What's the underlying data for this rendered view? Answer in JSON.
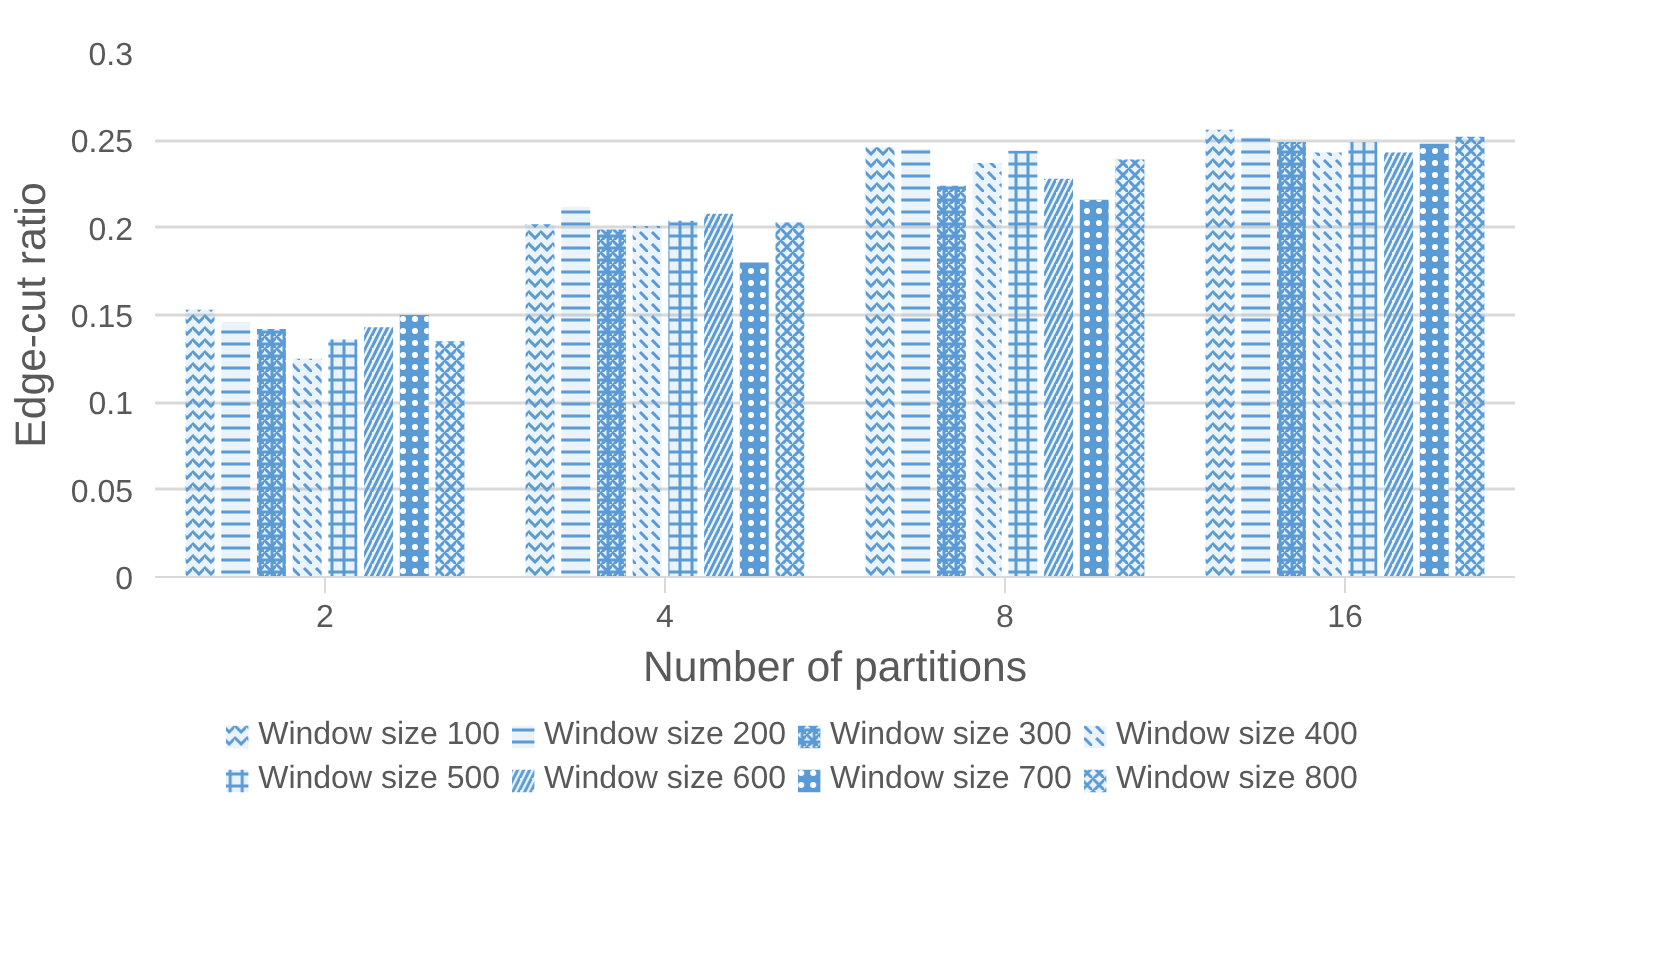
{
  "chart_data": {
    "type": "bar",
    "xlabel": "Number of partitions",
    "ylabel": "Edge-cut ratio",
    "categories": [
      "2",
      "4",
      "8",
      "16"
    ],
    "series": [
      {
        "name": "Window size 100",
        "color": "#5b9bd5",
        "values": [
          0.153,
          0.202,
          0.246,
          0.256
        ]
      },
      {
        "name": "Window size 200",
        "color": "#5b9bd5",
        "values": [
          0.146,
          0.212,
          0.245,
          0.252
        ]
      },
      {
        "name": "Window size 300",
        "color": "#5b9bd5",
        "values": [
          0.142,
          0.199,
          0.224,
          0.249
        ]
      },
      {
        "name": "Window size 400",
        "color": "#5b9bd5",
        "values": [
          0.125,
          0.201,
          0.237,
          0.243
        ]
      },
      {
        "name": "Window size 500",
        "color": "#5b9bd5",
        "values": [
          0.136,
          0.204,
          0.244,
          0.249
        ]
      },
      {
        "name": "Window size 600",
        "color": "#5b9bd5",
        "values": [
          0.143,
          0.208,
          0.228,
          0.243
        ]
      },
      {
        "name": "Window size 700",
        "color": "#5b9bd5",
        "values": [
          0.15,
          0.18,
          0.216,
          0.248
        ]
      },
      {
        "name": "Window size 800",
        "color": "#5b9bd5",
        "values": [
          0.135,
          0.203,
          0.239,
          0.252
        ]
      }
    ],
    "ylim": [
      0,
      0.3
    ],
    "yticks": [
      0,
      0.05,
      0.1,
      0.15,
      0.2,
      0.25,
      0.3
    ],
    "grid": "y",
    "legend": "bottom"
  }
}
